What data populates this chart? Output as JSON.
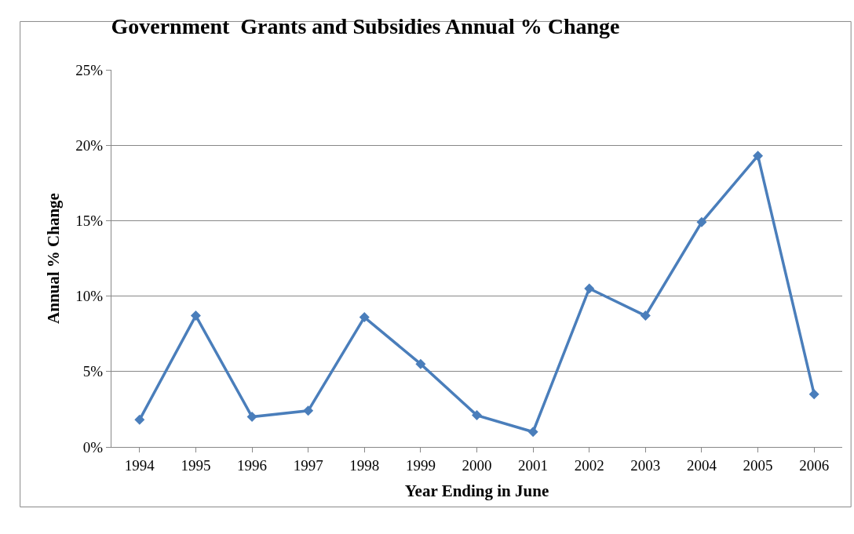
{
  "chart_data": {
    "type": "line",
    "title": "Government  Grants and Subsidies Annual % Change",
    "xlabel": "Year Ending in June",
    "ylabel": "Annual % Change",
    "categories": [
      "1994",
      "1995",
      "1996",
      "1997",
      "1998",
      "1999",
      "2000",
      "2001",
      "2002",
      "2003",
      "2004",
      "2005",
      "2006"
    ],
    "series": [
      {
        "color": "#4a7ebb",
        "values": [
          1.8,
          8.7,
          2.0,
          2.4,
          8.6,
          5.5,
          2.1,
          1.0,
          10.5,
          8.7,
          14.9,
          19.3,
          3.5
        ]
      }
    ],
    "ylim": [
      0,
      25
    ],
    "yticks": [
      {
        "value": 0,
        "label": "0%"
      },
      {
        "value": 5,
        "label": "5%"
      },
      {
        "value": 10,
        "label": "10%"
      },
      {
        "value": 15,
        "label": "15%"
      },
      {
        "value": 20,
        "label": "20%"
      },
      {
        "value": 25,
        "label": "25%"
      }
    ],
    "grid": "y",
    "legend": false,
    "marker": "diamond",
    "line_style": "solid"
  }
}
